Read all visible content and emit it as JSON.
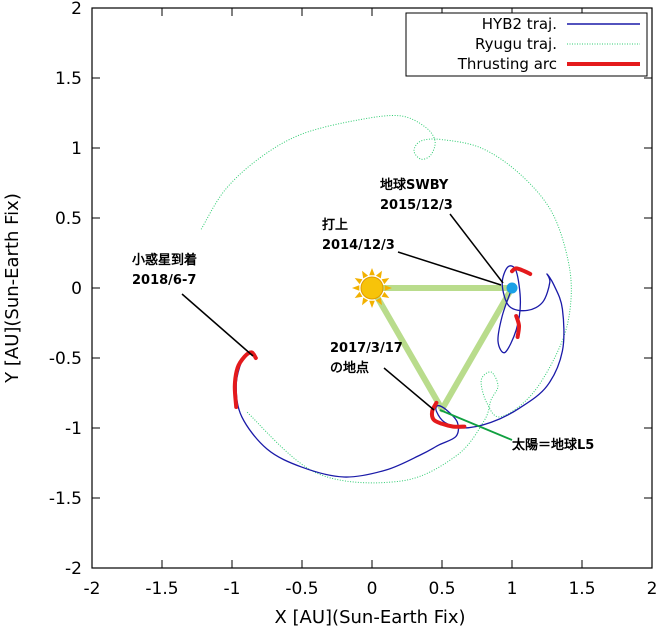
{
  "chart_data": {
    "type": "line",
    "title": "",
    "xlabel": "X [AU](Sun-Earth Fix)",
    "ylabel": "Y [AU](Sun-Earth Fix)",
    "xlim": [
      -2,
      2
    ],
    "ylim": [
      -2,
      2
    ],
    "x_ticks": [
      "-2",
      "-1.5",
      "-1",
      "-0.5",
      "0",
      "0.5",
      "1",
      "1.5",
      "2"
    ],
    "y_ticks": [
      "-2",
      "-1.5",
      "-1",
      "-0.5",
      "0",
      "0.5",
      "1",
      "1.5",
      "2"
    ],
    "grid": false,
    "legend_position": "top-right",
    "series": [
      {
        "name": "HYB2 traj.",
        "color": "#1a1aa8",
        "points": [
          [
            1.0,
            0.0
          ],
          [
            0.93,
            -0.2
          ],
          [
            0.9,
            -0.38
          ],
          [
            0.95,
            -0.46
          ],
          [
            1.03,
            -0.3
          ],
          [
            1.06,
            -0.1
          ],
          [
            1.03,
            0.12
          ],
          [
            0.97,
            0.15
          ],
          [
            0.93,
            0.03
          ],
          [
            0.98,
            -0.13
          ],
          [
            1.11,
            -0.16
          ],
          [
            1.22,
            -0.1
          ],
          [
            1.27,
            0.04
          ],
          [
            1.25,
            0.1
          ],
          [
            1.3,
            0.02
          ],
          [
            1.36,
            -0.15
          ],
          [
            1.36,
            -0.45
          ],
          [
            1.25,
            -0.7
          ],
          [
            1.05,
            -0.86
          ],
          [
            0.85,
            -0.96
          ],
          [
            0.65,
            -1.0
          ],
          [
            0.52,
            -0.96
          ],
          [
            0.46,
            -0.88
          ],
          [
            0.47,
            -0.84
          ],
          [
            0.53,
            -0.87
          ],
          [
            0.61,
            -0.96
          ],
          [
            0.6,
            -1.06
          ],
          [
            0.48,
            -1.12
          ],
          [
            0.35,
            -1.19
          ],
          [
            0.1,
            -1.3
          ],
          [
            -0.2,
            -1.35
          ],
          [
            -0.5,
            -1.28
          ],
          [
            -0.75,
            -1.15
          ],
          [
            -0.93,
            -0.92
          ],
          [
            -0.97,
            -0.7
          ],
          [
            -0.93,
            -0.52
          ],
          [
            -0.88,
            -0.46
          ],
          [
            -0.84,
            -0.49
          ]
        ]
      },
      {
        "name": "Ryugu traj.",
        "color": "#2ecc71",
        "points": [
          [
            -1.22,
            0.42
          ],
          [
            -1.05,
            0.7
          ],
          [
            -0.8,
            0.93
          ],
          [
            -0.5,
            1.1
          ],
          [
            -0.1,
            1.2
          ],
          [
            0.2,
            1.23
          ],
          [
            0.38,
            1.15
          ],
          [
            0.45,
            1.05
          ],
          [
            0.42,
            0.95
          ],
          [
            0.35,
            0.92
          ],
          [
            0.3,
            0.98
          ],
          [
            0.35,
            1.05
          ],
          [
            0.5,
            1.06
          ],
          [
            0.78,
            1.0
          ],
          [
            1.05,
            0.82
          ],
          [
            1.28,
            0.55
          ],
          [
            1.4,
            0.2
          ],
          [
            1.42,
            -0.1
          ],
          [
            1.35,
            -0.4
          ],
          [
            1.15,
            -0.75
          ],
          [
            0.92,
            -0.92
          ],
          [
            0.82,
            -0.82
          ],
          [
            0.78,
            -0.66
          ],
          [
            0.85,
            -0.6
          ],
          [
            0.9,
            -0.7
          ],
          [
            0.85,
            -0.8
          ],
          [
            0.8,
            -0.95
          ],
          [
            0.6,
            -1.2
          ],
          [
            0.2,
            -1.38
          ],
          [
            -0.4,
            -1.32
          ],
          [
            -0.9,
            -0.88
          ]
        ]
      },
      {
        "name": "Thrusting arc",
        "color": "#e41a1c",
        "segments": [
          [
            [
              1.0,
              0.12
            ],
            [
              1.03,
              0.14
            ],
            [
              1.09,
              0.12
            ],
            [
              1.13,
              0.1
            ]
          ],
          [
            [
              1.03,
              -0.2
            ],
            [
              1.05,
              -0.27
            ],
            [
              1.04,
              -0.35
            ]
          ],
          [
            [
              0.46,
              -0.82
            ],
            [
              0.43,
              -0.88
            ],
            [
              0.44,
              -0.94
            ],
            [
              0.5,
              -0.97
            ],
            [
              0.58,
              -0.99
            ],
            [
              0.66,
              -0.99
            ]
          ],
          [
            [
              -0.97,
              -0.85
            ],
            [
              -0.98,
              -0.7
            ],
            [
              -0.96,
              -0.57
            ],
            [
              -0.91,
              -0.49
            ],
            [
              -0.86,
              -0.46
            ],
            [
              -0.83,
              -0.5
            ]
          ]
        ]
      }
    ],
    "bodies": {
      "sun": [
        0,
        0
      ],
      "earth": [
        1,
        0
      ],
      "l5": [
        0.5,
        -0.866
      ]
    },
    "annotations": [
      {
        "lines": [
          "地球SWBY",
          "2015/12/3"
        ],
        "target": [
          1.0,
          0.02
        ]
      },
      {
        "lines": [
          "打上",
          "2014/12/3"
        ],
        "target": [
          0.98,
          0.0
        ]
      },
      {
        "lines": [
          "小惑星到着",
          "2018/6-7"
        ],
        "target": [
          -0.85,
          -0.5
        ]
      },
      {
        "lines": [
          "2017/3/17",
          "の地点"
        ],
        "target": [
          0.46,
          -0.9
        ]
      },
      {
        "lines": [
          "太陽＝地球L5"
        ],
        "target": [
          0.5,
          -0.87
        ]
      }
    ]
  }
}
